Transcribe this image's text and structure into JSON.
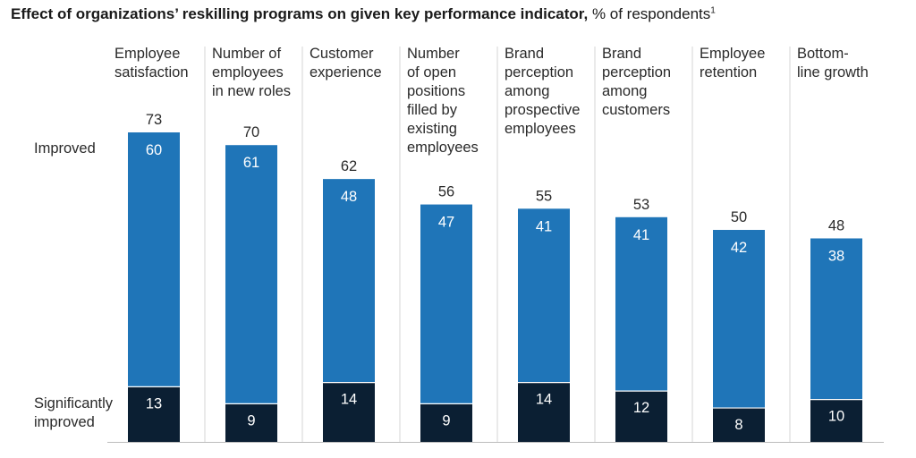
{
  "title": {
    "main": "Effect of organizations’ reskilling programs on given key performance indicator,",
    "unit": " % of respondents",
    "footnote_marker": "1"
  },
  "chart_data": {
    "type": "bar",
    "stacked": true,
    "categories": [
      "Employee satisfaction",
      "Number of employees in new roles",
      "Customer experience",
      "Number of open positions filled by existing employees",
      "Brand perception among prospective employees",
      "Brand perception among customers",
      "Employee retention",
      "Bottom-line growth"
    ],
    "category_lines": [
      [
        "Employee",
        "satisfaction"
      ],
      [
        "Number of",
        "employees",
        "in new roles"
      ],
      [
        "Customer",
        "experience"
      ],
      [
        "Number",
        "of open",
        "positions",
        "filled by",
        "existing",
        "employees"
      ],
      [
        "Brand",
        "perception",
        "among",
        "prospective",
        "employees"
      ],
      [
        "Brand",
        "perception",
        "among",
        "customers"
      ],
      [
        "Employee",
        "retention"
      ],
      [
        "Bottom-",
        "line growth"
      ]
    ],
    "series": [
      {
        "name": "Significantly improved",
        "name_lines": [
          "Significantly",
          "improved"
        ],
        "color": "#0b1f33",
        "values": [
          13,
          9,
          14,
          9,
          14,
          12,
          8,
          10
        ]
      },
      {
        "name": "Improved",
        "name_lines": [
          "Improved"
        ],
        "color": "#1f75b8",
        "values": [
          60,
          61,
          48,
          47,
          41,
          41,
          42,
          38
        ]
      }
    ],
    "totals": [
      73,
      70,
      62,
      56,
      55,
      53,
      50,
      48
    ],
    "ylim": [
      0,
      73
    ],
    "grid": false,
    "legend": "left, inline"
  }
}
